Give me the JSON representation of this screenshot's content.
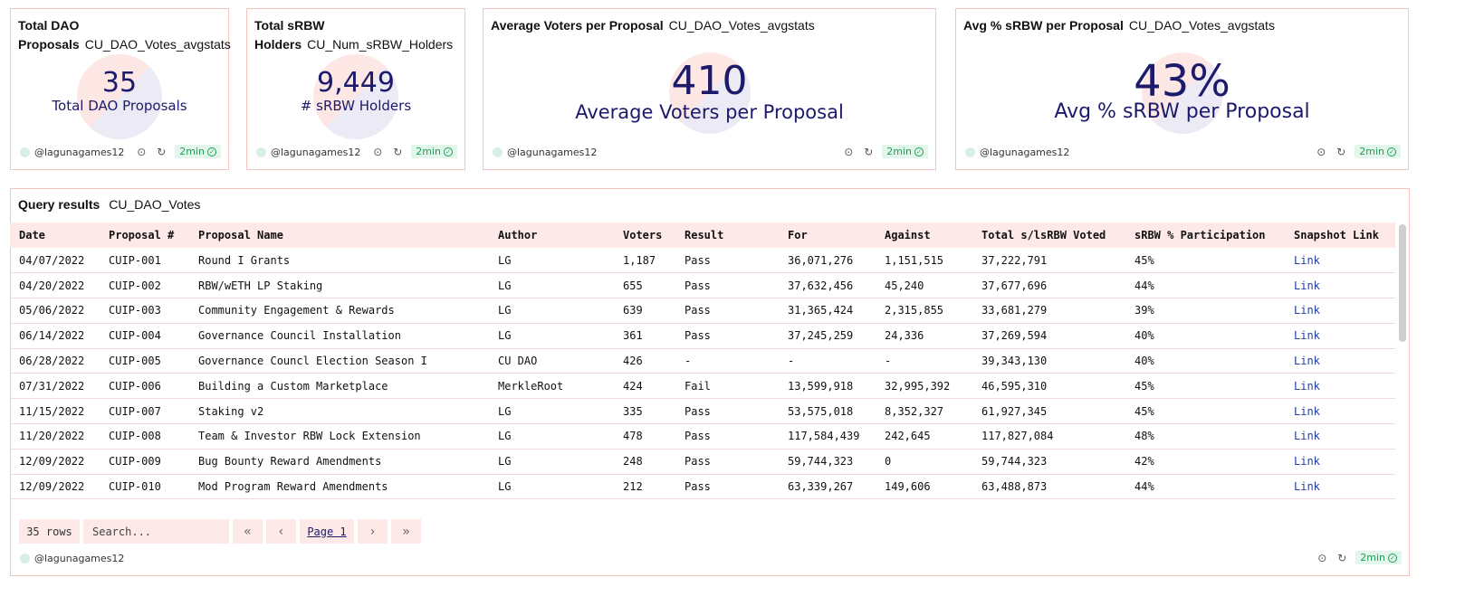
{
  "cards": [
    {
      "title": "Total DAO",
      "title2": "Proposals",
      "query": "CU_DAO_Votes_avgstats",
      "value": "35",
      "label": "Total DAO Proposals",
      "user": "@lagunagames12",
      "refresh": "2min"
    },
    {
      "title": "Total sRBW",
      "title2": "Holders",
      "query": "CU_Num_sRBW_Holders",
      "value": "9,449",
      "label": "# sRBW Holders",
      "user": "@lagunagames12",
      "refresh": "2min"
    },
    {
      "title": "Average Voters per Proposal",
      "query": "CU_DAO_Votes_avgstats",
      "value": "410",
      "label": "Average Voters per Proposal",
      "user": "@lagunagames12",
      "refresh": "2min"
    },
    {
      "title": "Avg % sRBW per Proposal",
      "query": "CU_DAO_Votes_avgstats",
      "value": "43%",
      "label": "Avg % sRBW per Proposal",
      "user": "@lagunagames12",
      "refresh": "2min"
    }
  ],
  "results": {
    "title": "Query results",
    "query": "CU_DAO_Votes",
    "columns": [
      "Date",
      "Proposal #",
      "Proposal Name",
      "Author",
      "Voters",
      "Result",
      "For",
      "Against",
      "Total s/lsRBW Voted",
      "sRBW % Participation",
      "Snapshot Link"
    ],
    "rows": [
      [
        "04/07/2022",
        "CUIP-001",
        "Round I Grants",
        "LG",
        "1,187",
        "Pass",
        "36,071,276",
        "1,151,515",
        "37,222,791",
        "45%",
        "Link"
      ],
      [
        "04/20/2022",
        "CUIP-002",
        "RBW/wETH LP Staking",
        "LG",
        "655",
        "Pass",
        "37,632,456",
        "45,240",
        "37,677,696",
        "44%",
        "Link"
      ],
      [
        "05/06/2022",
        "CUIP-003",
        "Community Engagement & Rewards",
        "LG",
        "639",
        "Pass",
        "31,365,424",
        "2,315,855",
        "33,681,279",
        "39%",
        "Link"
      ],
      [
        "06/14/2022",
        "CUIP-004",
        "Governance Council Installation",
        "LG",
        "361",
        "Pass",
        "37,245,259",
        "24,336",
        "37,269,594",
        "40%",
        "Link"
      ],
      [
        "06/28/2022",
        "CUIP-005",
        "Governance Councl Election Season I",
        "CU DAO",
        "426",
        "-",
        "-",
        "-",
        "39,343,130",
        "40%",
        "Link"
      ],
      [
        "07/31/2022",
        "CUIP-006",
        "Building a Custom Marketplace",
        "MerkleRoot",
        "424",
        "Fail",
        "13,599,918",
        "32,995,392",
        "46,595,310",
        "45%",
        "Link"
      ],
      [
        "11/15/2022",
        "CUIP-007",
        "Staking v2",
        "LG",
        "335",
        "Pass",
        "53,575,018",
        "8,352,327",
        "61,927,345",
        "45%",
        "Link"
      ],
      [
        "11/20/2022",
        "CUIP-008",
        "Team & Investor RBW Lock Extension",
        "LG",
        "478",
        "Pass",
        "117,584,439",
        "242,645",
        "117,827,084",
        "48%",
        "Link"
      ],
      [
        "12/09/2022",
        "CUIP-009",
        "Bug Bounty Reward Amendments",
        "LG",
        "248",
        "Pass",
        "59,744,323",
        "0",
        "59,744,323",
        "42%",
        "Link"
      ],
      [
        "12/09/2022",
        "CUIP-010",
        "Mod Program Reward Amendments",
        "LG",
        "212",
        "Pass",
        "63,339,267",
        "149,606",
        "63,488,873",
        "44%",
        "Link"
      ]
    ],
    "row_count": "35 rows",
    "search_placeholder": "Search...",
    "page_label": "Page 1",
    "user": "@lagunagames12",
    "refresh": "2min"
  },
  "icons": {
    "first": "«",
    "prev": "‹",
    "next": "›",
    "last": "»",
    "camera": "⊙",
    "refresh": "↻",
    "check": "✓"
  },
  "colors": {
    "accent": "#1c1a6b",
    "border": "#f3c4c0",
    "header_bg": "#fde9e7",
    "badge_green": "#1f9d55"
  }
}
